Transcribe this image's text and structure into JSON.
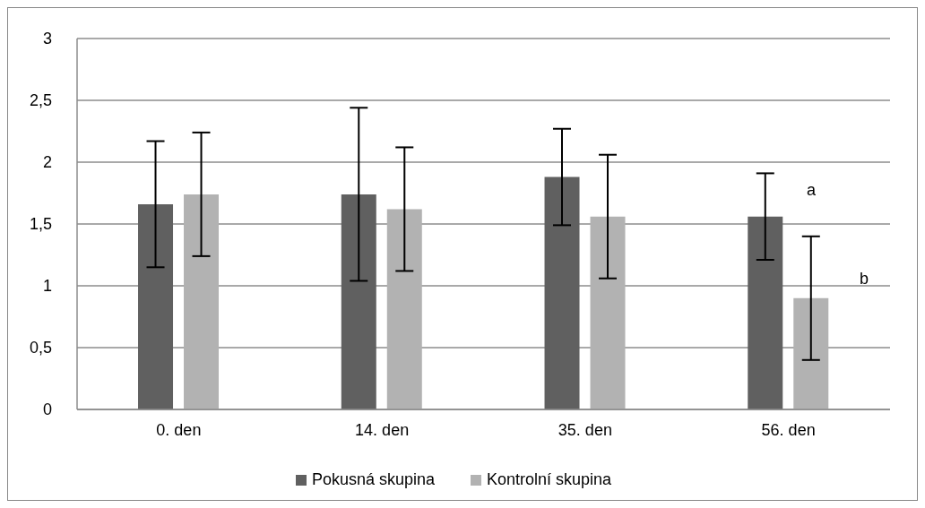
{
  "chart_data": {
    "type": "bar",
    "categories": [
      "0. den",
      "14. den",
      "35. den",
      "56. den"
    ],
    "series": [
      {
        "name": "Pokusná skupina",
        "color": "#606060",
        "values": [
          1.66,
          1.74,
          1.88,
          1.56
        ],
        "errors": [
          0.51,
          0.7,
          0.39,
          0.35
        ]
      },
      {
        "name": "Kontrolní skupina",
        "color": "#b2b2b2",
        "values": [
          1.74,
          1.62,
          1.56,
          0.9
        ],
        "errors": [
          0.5,
          0.5,
          0.5,
          0.5
        ]
      }
    ],
    "ylim": [
      0,
      3
    ],
    "yticks": [
      {
        "value": 0,
        "label": "0"
      },
      {
        "value": 0.5,
        "label": "0,5"
      },
      {
        "value": 1,
        "label": "1"
      },
      {
        "value": 1.5,
        "label": "1,5"
      },
      {
        "value": 2,
        "label": "2"
      },
      {
        "value": 2.5,
        "label": "2,5"
      },
      {
        "value": 3,
        "label": "3"
      }
    ],
    "grid": "y",
    "legend": "bottom",
    "annotations": [
      "a",
      "b"
    ]
  }
}
